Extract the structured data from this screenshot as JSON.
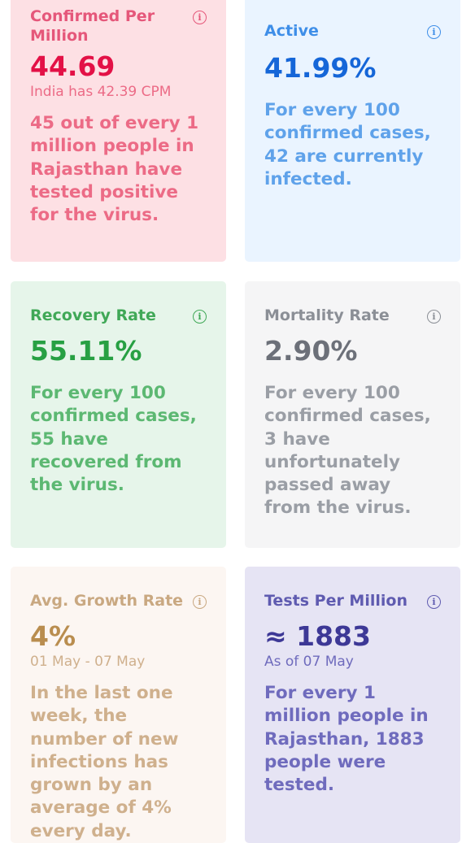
{
  "cards": [
    {
      "title": "Confirmed Per Million",
      "value": "44.69",
      "sub": "India has 42.39 CPM",
      "desc": "45 out of every 1 million people in Rajasthan have tested positive for the virus.",
      "colors": {
        "bg": "#fde0e4",
        "title": "#e5577a",
        "value": "#e31146",
        "text": "#ec6b86"
      },
      "icon": "info-icon"
    },
    {
      "title": "Active",
      "value": "41.99%",
      "sub": "",
      "desc": "For every 100 confirmed cases, 42 are currently infected.",
      "colors": {
        "bg": "#eaf4ff",
        "title": "#3e8ee8",
        "value": "#1566d8",
        "text": "#5fa2ea"
      },
      "icon": "info-icon"
    },
    {
      "title": "Recovery Rate",
      "value": "55.11%",
      "sub": "",
      "desc": "For every 100 confirmed cases, 55 have recovered from the virus.",
      "colors": {
        "bg": "#e6f5ea",
        "title": "#40a857",
        "value": "#27a043",
        "text": "#5cb872"
      },
      "icon": "info-icon"
    },
    {
      "title": "Mortality Rate",
      "value": "2.90%",
      "sub": "",
      "desc": "For every 100 confirmed cases, 3 have unfortunately passed away from the virus.",
      "colors": {
        "bg": "#f5f5f6",
        "title": "#8b8f96",
        "value": "#6c7079",
        "text": "#9a9ea5"
      },
      "icon": "info-icon"
    },
    {
      "title": "Avg. Growth Rate",
      "value": "4%",
      "sub": "01 May - 07 May",
      "desc": "In the last one week, the number of new infections has grown by an average of 4% every day.",
      "colors": {
        "bg": "#fcf6f2",
        "title": "#c9a881",
        "value": "#b98d4f",
        "text": "#cfb08d"
      },
      "icon": "info-icon"
    },
    {
      "title": "Tests Per Million",
      "value": "≈ 1883",
      "sub": "As of 07 May",
      "desc": "For every 1 million people in Rajasthan, 1883 people were tested.",
      "colors": {
        "bg": "#e6e4f4",
        "title": "#5f5bb0",
        "value": "#3d3896",
        "text": "#6f6bbd"
      },
      "icon": "info-icon"
    }
  ]
}
